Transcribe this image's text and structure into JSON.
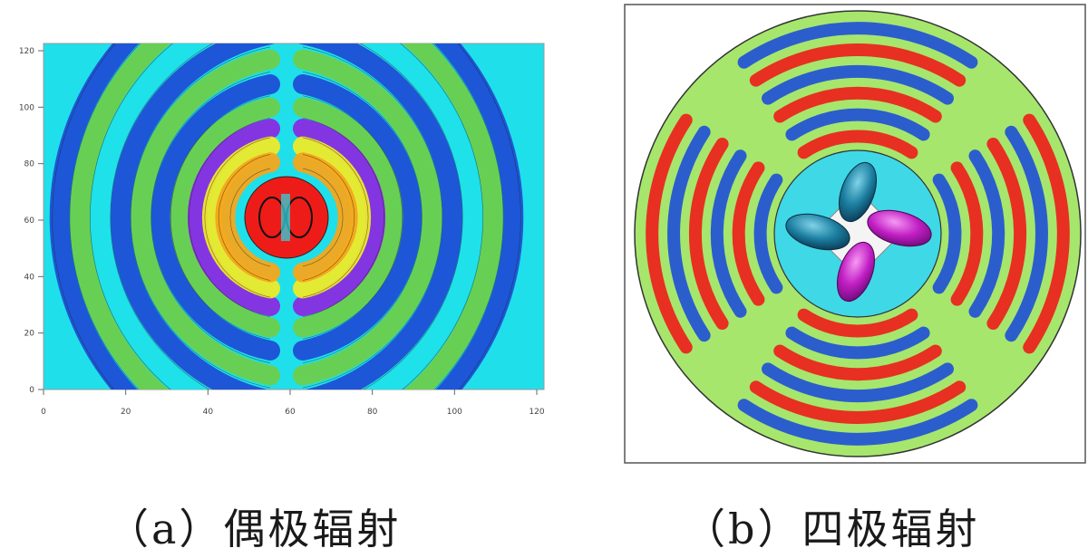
{
  "panel_a": {
    "caption": "（a）偶极辐射",
    "x_ticks": [
      "0",
      "20",
      "40",
      "60",
      "80",
      "100",
      "120"
    ],
    "y_ticks": [
      "0",
      "20",
      "40",
      "60",
      "80",
      "100",
      "120"
    ],
    "x_range": [
      0,
      120
    ],
    "y_range": [
      0,
      120
    ]
  },
  "panel_b": {
    "caption": "（b）四极辐射"
  },
  "colors": {
    "red": "#ee1c18",
    "orange": "#f5a51c",
    "yellow": "#eeea2a",
    "green": "#6ccf4c",
    "cyan": "#1fe0ea",
    "blue": "#1e4fd6",
    "violet": "#8a2be2",
    "magenta": "#c51fd3"
  }
}
